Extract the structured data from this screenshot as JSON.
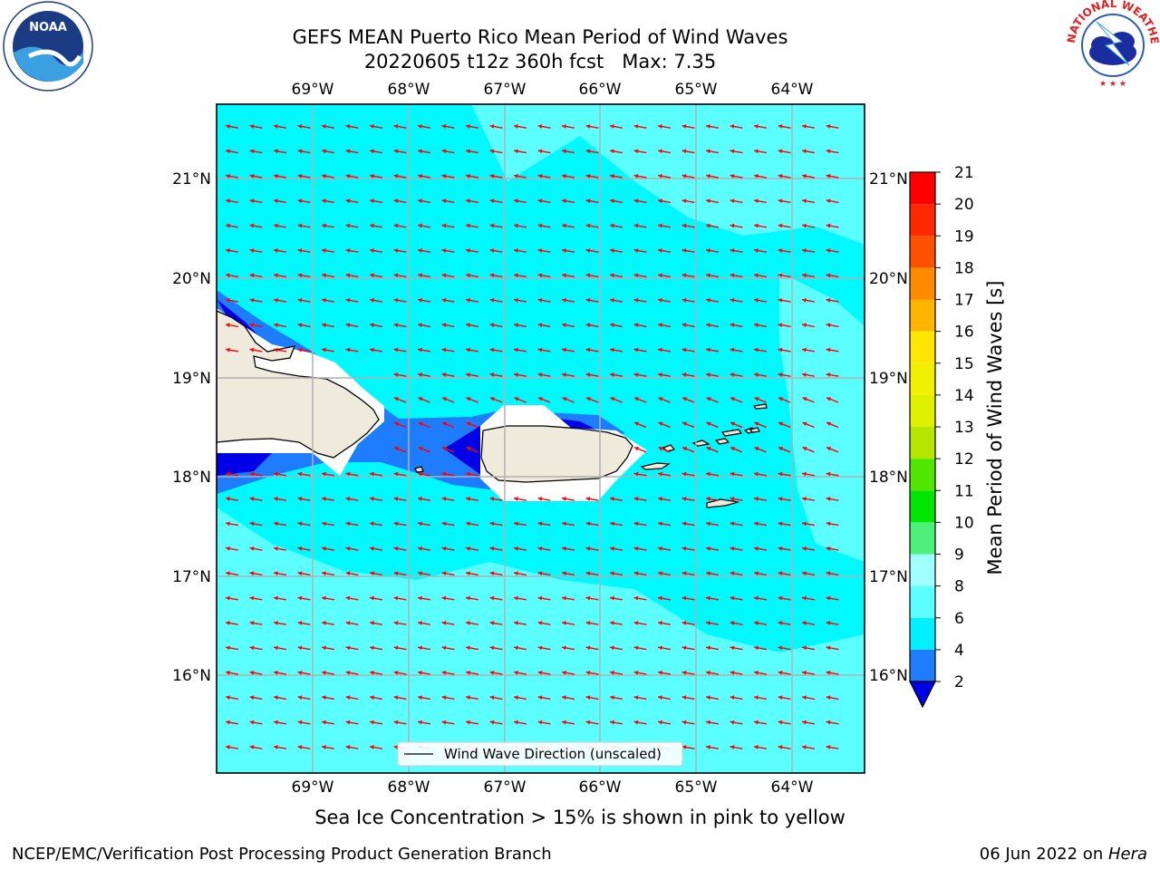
{
  "header": {
    "title": "GEFS MEAN Puerto Rico Mean Period of Wind Waves",
    "run": "20220605 t12z 360h fcst",
    "max_label": "Max: 7.35"
  },
  "logos": {
    "left": "NOAA",
    "right": "NATIONAL WEATHER SERVICE"
  },
  "map": {
    "lon_ticks": [
      "69°W",
      "68°W",
      "67°W",
      "66°W",
      "65°W",
      "64°W"
    ],
    "lat_ticks": [
      "21°N",
      "20°N",
      "19°N",
      "18°N",
      "17°N",
      "16°N"
    ],
    "legend": "Wind Wave Direction (unscaled)",
    "colors": {
      "ocean": "#5cffff",
      "ocean_light": "#00f8ff",
      "shallow": "#1e7cff",
      "deep": "#0000e6",
      "land": "#efebdc",
      "arrow": "#ff0000",
      "grid": "#b0b0b0"
    }
  },
  "colorbar": {
    "label": "Mean Period of Wind Waves [s]",
    "levels": [
      "2",
      "4",
      "6",
      "8",
      "9",
      "10",
      "11",
      "12",
      "13",
      "14",
      "15",
      "16",
      "17",
      "18",
      "19",
      "20",
      "21"
    ],
    "colors": [
      "#0000e6",
      "#1e7cff",
      "#00f0ff",
      "#5cffff",
      "#a0ffff",
      "#4cf07a",
      "#00e600",
      "#50e600",
      "#b4e600",
      "#dcf000",
      "#f0f000",
      "#ffe600",
      "#ffb400",
      "#ff8c00",
      "#ff5000",
      "#ff2800",
      "#ff0000"
    ]
  },
  "subtitle": "Sea Ice Concentration > 15% is shown in pink to yellow",
  "footer": {
    "left": "NCEP/EMC/Verification Post Processing Product Generation Branch",
    "date": "06 Jun 2022 on ",
    "host": "Hera"
  }
}
